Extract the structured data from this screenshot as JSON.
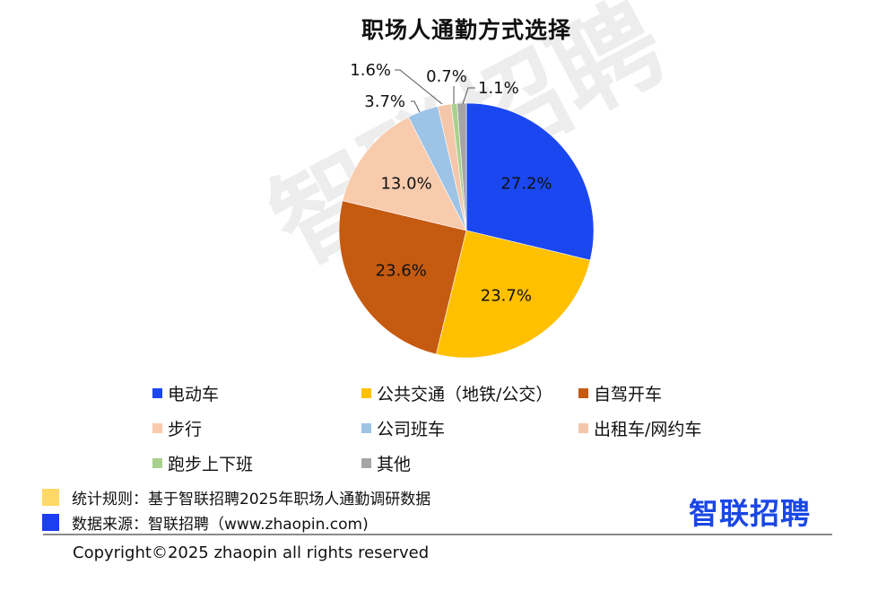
{
  "chart_data": {
    "type": "pie",
    "title": "职场人通勤方式选择",
    "slices": [
      {
        "label": "电动车",
        "value": 27.2,
        "display": "27.2%",
        "color": "#1a47f0"
      },
      {
        "label": "公共交通（地铁/公交）",
        "value": 23.7,
        "display": "23.7%",
        "color": "#ffc000"
      },
      {
        "label": "自驾开车",
        "value": 23.6,
        "display": "23.6%",
        "color": "#c55a11"
      },
      {
        "label": "步行",
        "value": 13.0,
        "display": "13.0%",
        "color": "#f8cbad"
      },
      {
        "label": "公司班车",
        "value": 3.7,
        "display": "3.7%",
        "color": "#9dc3e6"
      },
      {
        "label": "出租车/网约车",
        "value": 1.6,
        "display": "1.6%",
        "color": "#f4c7ab"
      },
      {
        "label": "跑步上下班",
        "value": 0.7,
        "display": "0.7%",
        "color": "#a9d18e"
      },
      {
        "label": "其他",
        "value": 1.1,
        "display": "1.1%",
        "color": "#a5a5a5"
      }
    ],
    "legend_position": "bottom"
  },
  "title": "职场人通勤方式选择",
  "watermark": "智联招聘",
  "legend": [
    {
      "label": "电动车",
      "color": "#1a47f0"
    },
    {
      "label": "公共交通（地铁/公交）",
      "color": "#ffc000"
    },
    {
      "label": "自驾开车",
      "color": "#c55a11"
    },
    {
      "label": "步行",
      "color": "#f8cbad"
    },
    {
      "label": "公司班车",
      "color": "#9dc3e6"
    },
    {
      "label": "出租车/网约车",
      "color": "#f4c7ab"
    },
    {
      "label": "跑步上下班",
      "color": "#a9d18e"
    },
    {
      "label": "其他",
      "color": "#a5a5a5"
    }
  ],
  "footer": {
    "rule_note": "统计规则：基于智联招聘2025年职场人通勤调研数据",
    "rule_color": "#ffd966",
    "source_note": "数据来源：智联招聘（www.zhaopin.com)",
    "source_color": "#1a3ef0",
    "logo": "智联招聘",
    "copyright": "Copyright©2025 zhaopin all rights reserved"
  }
}
